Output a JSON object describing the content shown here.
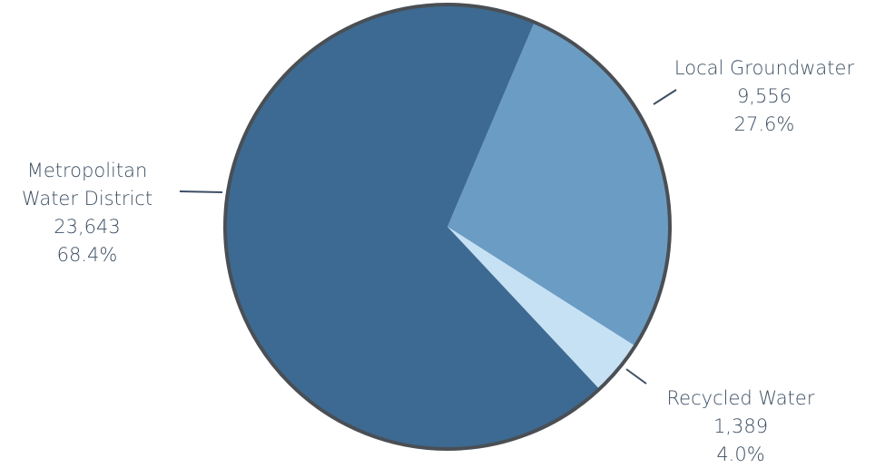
{
  "chart_data": {
    "type": "pie",
    "title": "",
    "slices": [
      {
        "label_lines": [
          "Metropolitan",
          "Water District"
        ],
        "value": 23643,
        "value_text": "23,643",
        "percent_text": "68.4%",
        "color": "#3d6a92"
      },
      {
        "label_lines": [
          "Local Groundwater"
        ],
        "value": 9556,
        "value_text": "9,556",
        "percent_text": "27.6%",
        "color": "#6b9cc3"
      },
      {
        "label_lines": [
          "Recycled Water"
        ],
        "value": 1389,
        "value_text": "1,389",
        "percent_text": "4.0%",
        "color": "#c6e0f4"
      }
    ],
    "outline_color": "#4a4f55",
    "text_color": "#3d4f63"
  }
}
